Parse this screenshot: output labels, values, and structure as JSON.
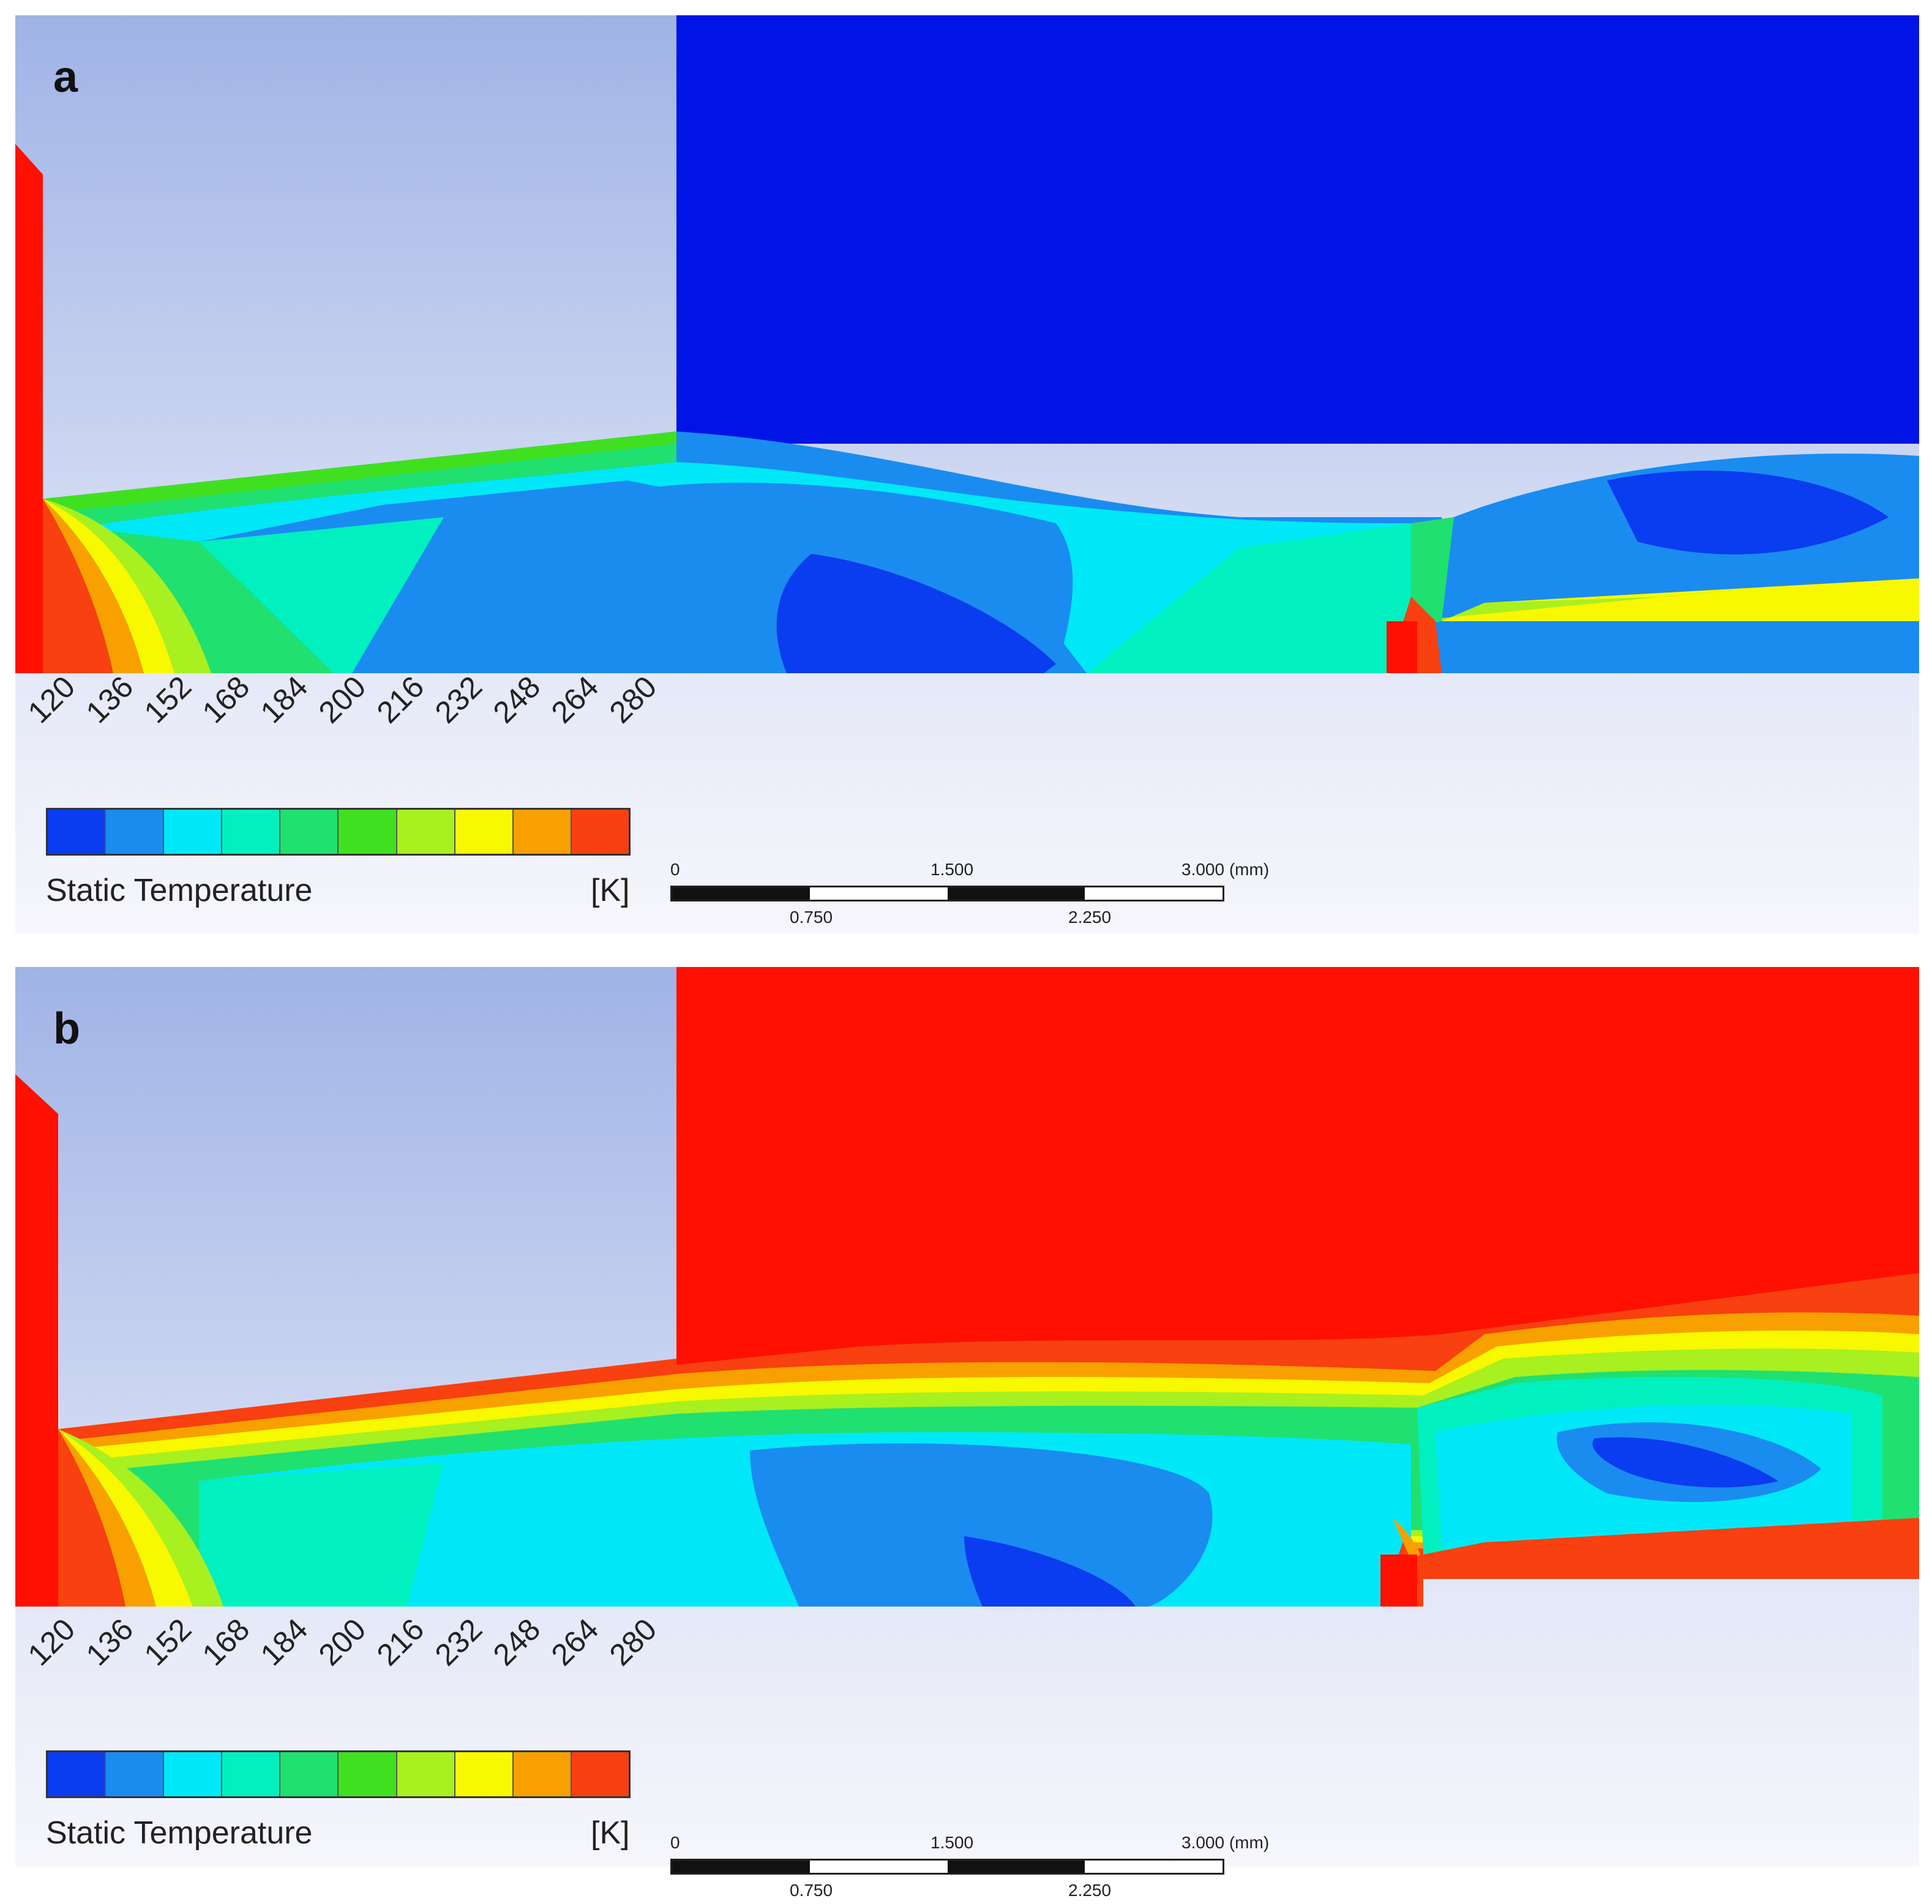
{
  "panels": [
    {
      "id": "a",
      "letter": "a",
      "legend": {
        "ticks": [
          "120",
          "136",
          "152",
          "168",
          "184",
          "200",
          "216",
          "232",
          "248",
          "264",
          "280"
        ],
        "title": "Static Temperature",
        "unit": "[K]"
      },
      "scale": {
        "top_labels": [
          "0",
          "1.500",
          "3.000 (mm)"
        ],
        "bottom_labels": [
          "0.750",
          "2.250"
        ]
      }
    },
    {
      "id": "b",
      "letter": "b",
      "legend": {
        "ticks": [
          "120",
          "136",
          "152",
          "168",
          "184",
          "200",
          "216",
          "232",
          "248",
          "264",
          "280"
        ],
        "title": "Static Temperature",
        "unit": "[K]"
      },
      "scale": {
        "top_labels": [
          "0",
          "1.500",
          "3.000 (mm)"
        ],
        "bottom_labels": [
          "0.750",
          "2.250"
        ]
      }
    }
  ],
  "colormap": [
    "#0a3cf0",
    "#1a8cf0",
    "#00e8f8",
    "#00f0c0",
    "#20e070",
    "#40e020",
    "#a8f020",
    "#f8f800",
    "#f8a000",
    "#f84010"
  ],
  "colors": {
    "solid_red": "#ff1000",
    "ambient_blue": "#0014e6",
    "background_top": "#a0b4e6",
    "background_bottom": "#eef0fa"
  }
}
